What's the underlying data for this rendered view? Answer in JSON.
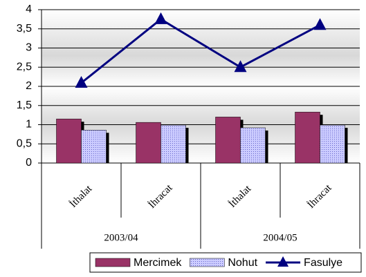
{
  "chart_data": {
    "type": "bar",
    "categories": [
      "İthalat",
      "İhracat",
      "İthalat",
      "İhracat"
    ],
    "groups": [
      "2003/04",
      "2004/05"
    ],
    "series": [
      {
        "name": "Mercimek",
        "type": "bar",
        "color": "#993366",
        "values": [
          1.15,
          1.06,
          1.2,
          1.33
        ]
      },
      {
        "name": "Nohut",
        "type": "bar",
        "color": "#ccccff",
        "values": [
          0.86,
          0.99,
          0.92,
          0.99
        ]
      },
      {
        "name": "Fasulye",
        "type": "line",
        "color": "#000080",
        "values": [
          2.09,
          3.75,
          2.5,
          3.6
        ]
      }
    ],
    "ylim": [
      0,
      4
    ],
    "yticks": [
      0,
      {
        "value": 0.5,
        "label": "0,5"
      },
      1,
      {
        "value": 1.5,
        "label": "1,5"
      },
      2,
      {
        "value": 2.5,
        "label": "2,5"
      },
      3,
      {
        "value": 3.5,
        "label": "3,5"
      },
      4
    ],
    "grid": true
  }
}
